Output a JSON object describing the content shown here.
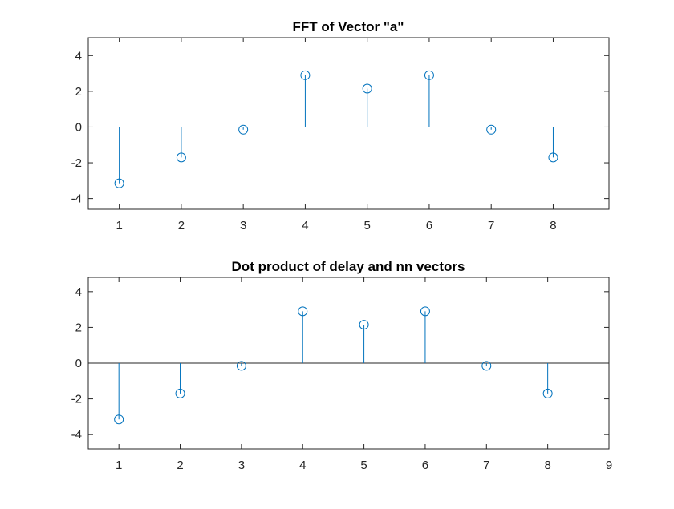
{
  "chart_data": [
    {
      "type": "stem",
      "title": "FFT of Vector \"a\"",
      "xlabel": "",
      "ylabel": "",
      "x": [
        1,
        2,
        3,
        4,
        5,
        6,
        7,
        8
      ],
      "y": [
        -3.15,
        -1.7,
        -0.15,
        2.9,
        2.15,
        2.9,
        -0.15,
        -1.7
      ],
      "xlim": [
        0.5,
        8.9
      ],
      "ylim": [
        -4.6,
        5.0
      ],
      "xticks": [
        1,
        2,
        3,
        4,
        5,
        6,
        7,
        8
      ],
      "yticks": [
        -4,
        -2,
        0,
        2,
        4
      ],
      "color": "#0072bd",
      "grid": false
    },
    {
      "type": "stem",
      "title": "Dot product of delay and nn vectors",
      "xlabel": "",
      "ylabel": "",
      "x": [
        1,
        2,
        3,
        4,
        5,
        6,
        7,
        8
      ],
      "y": [
        -3.15,
        -1.7,
        -0.15,
        2.9,
        2.15,
        2.9,
        -0.15,
        -1.7
      ],
      "xlim": [
        0.5,
        9
      ],
      "ylim": [
        -4.8,
        4.8
      ],
      "xticks": [
        1,
        2,
        3,
        4,
        5,
        6,
        7,
        8,
        9
      ],
      "yticks": [
        -4,
        -2,
        0,
        2,
        4
      ],
      "color": "#0072bd",
      "grid": false
    }
  ]
}
